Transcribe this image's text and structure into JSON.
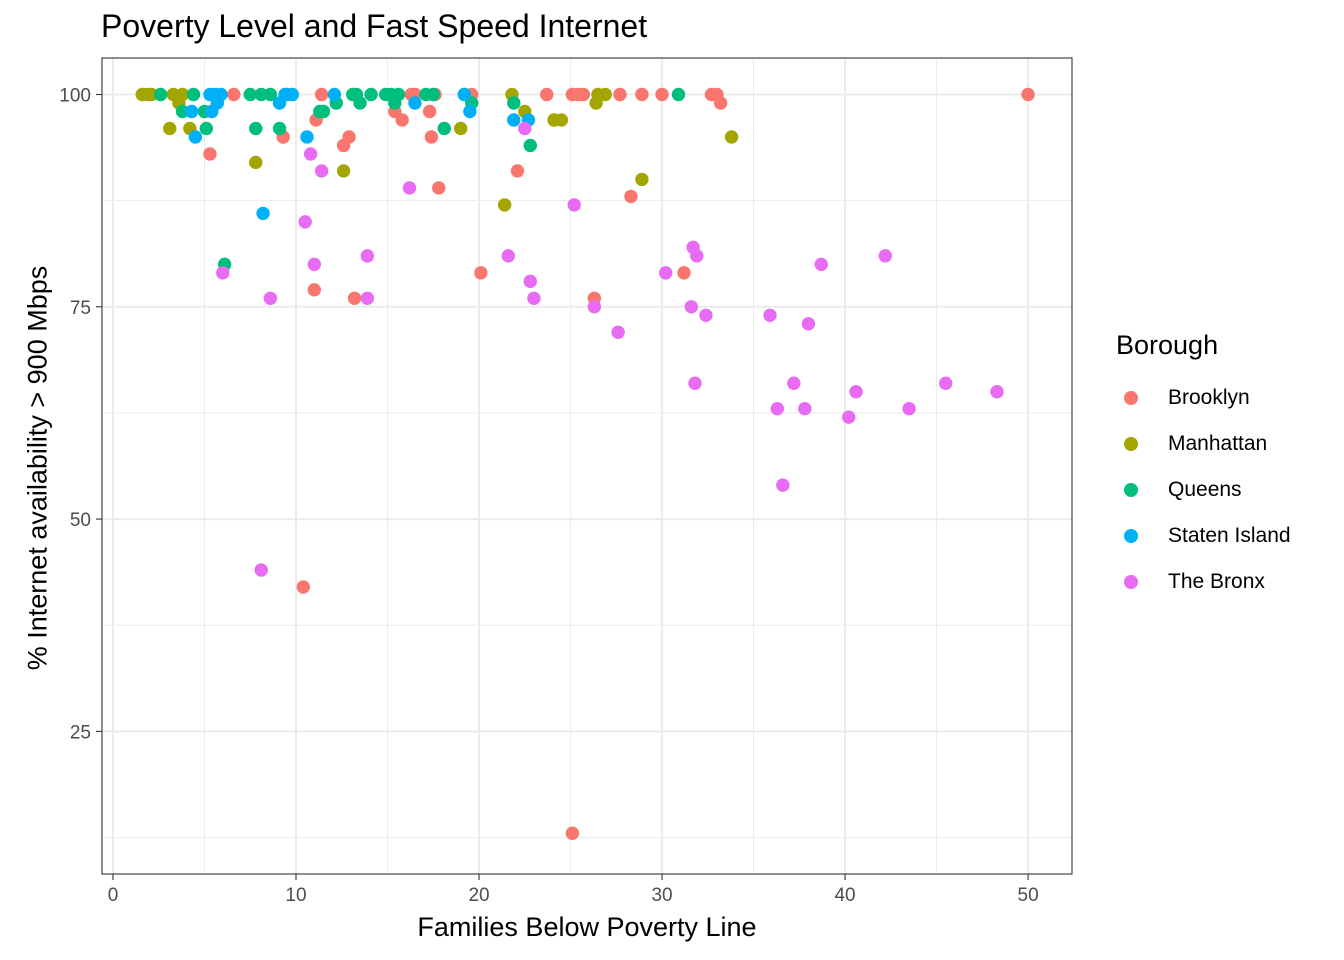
{
  "chart_data": {
    "type": "scatter",
    "title": "Poverty Level and Fast Speed Internet",
    "xlabel": "Families Below Poverty Line",
    "ylabel": "% Internet availability > 900 Mbps",
    "xlim": [
      -0.6,
      52.4
    ],
    "ylim": [
      8.2,
      104.3
    ],
    "x_ticks": [
      0,
      10,
      20,
      30,
      40,
      50
    ],
    "y_ticks": [
      25,
      50,
      75,
      100
    ],
    "grid": true,
    "legend_title": "Borough",
    "legend_position": "right",
    "series": [
      {
        "name": "Brooklyn",
        "color": "#F8766D",
        "points": [
          [
            5.3,
            93
          ],
          [
            6.6,
            100
          ],
          [
            9.3,
            95
          ],
          [
            11,
            77
          ],
          [
            11.1,
            97
          ],
          [
            11.4,
            100
          ],
          [
            12.6,
            94
          ],
          [
            12.9,
            95
          ],
          [
            13.2,
            76
          ],
          [
            15.4,
            98
          ],
          [
            15.8,
            97
          ],
          [
            16.3,
            100
          ],
          [
            16.5,
            100
          ],
          [
            17.3,
            98
          ],
          [
            17.4,
            95
          ],
          [
            17.6,
            100
          ],
          [
            17.8,
            89
          ],
          [
            19.6,
            100
          ],
          [
            20.1,
            79
          ],
          [
            22.1,
            91
          ],
          [
            23.7,
            100
          ],
          [
            25.1,
            100
          ],
          [
            25.4,
            100
          ],
          [
            25.7,
            100
          ],
          [
            26.3,
            76
          ],
          [
            27.7,
            100
          ],
          [
            28.3,
            88
          ],
          [
            28.9,
            100
          ],
          [
            30,
            100
          ],
          [
            31.2,
            79
          ],
          [
            32.7,
            100
          ],
          [
            33,
            100
          ],
          [
            33.2,
            99
          ],
          [
            25.1,
            13
          ],
          [
            10.4,
            42
          ],
          [
            50,
            100
          ]
        ]
      },
      {
        "name": "Manhattan",
        "color": "#A3A500",
        "points": [
          [
            1.6,
            100
          ],
          [
            1.9,
            100
          ],
          [
            2.1,
            100
          ],
          [
            3.1,
            96
          ],
          [
            3.3,
            100
          ],
          [
            3.6,
            99
          ],
          [
            3.8,
            100
          ],
          [
            4.2,
            96
          ],
          [
            7.8,
            92
          ],
          [
            12.6,
            91
          ],
          [
            19,
            96
          ],
          [
            21.4,
            87
          ],
          [
            21.8,
            100
          ],
          [
            22.5,
            98
          ],
          [
            24.1,
            97
          ],
          [
            24.5,
            97
          ],
          [
            26.4,
            99
          ],
          [
            26.5,
            100
          ],
          [
            26.9,
            100
          ],
          [
            28.9,
            90
          ],
          [
            33.8,
            95
          ]
        ]
      },
      {
        "name": "Queens",
        "color": "#00BF7D",
        "points": [
          [
            2.6,
            100
          ],
          [
            3.8,
            98
          ],
          [
            4.4,
            100
          ],
          [
            5,
            98
          ],
          [
            5.1,
            96
          ],
          [
            6.1,
            80
          ],
          [
            7.5,
            100
          ],
          [
            7.8,
            96
          ],
          [
            8.1,
            100
          ],
          [
            8.6,
            100
          ],
          [
            9.1,
            96
          ],
          [
            9.5,
            100
          ],
          [
            11.3,
            98
          ],
          [
            11.5,
            98
          ],
          [
            12.2,
            99
          ],
          [
            13.1,
            100
          ],
          [
            13.3,
            100
          ],
          [
            13.5,
            99
          ],
          [
            14.1,
            100
          ],
          [
            14.9,
            100
          ],
          [
            15.2,
            100
          ],
          [
            15.4,
            99
          ],
          [
            15.6,
            100
          ],
          [
            17.1,
            100
          ],
          [
            17.5,
            100
          ],
          [
            18.1,
            96
          ],
          [
            19.2,
            100
          ],
          [
            19.6,
            99
          ],
          [
            21.9,
            99
          ],
          [
            22.8,
            94
          ],
          [
            30.9,
            100
          ]
        ]
      },
      {
        "name": "Staten Island",
        "color": "#00B0F6",
        "points": [
          [
            4.3,
            98
          ],
          [
            4.5,
            95
          ],
          [
            5.3,
            100
          ],
          [
            5.4,
            98
          ],
          [
            5.6,
            100
          ],
          [
            5.7,
            99
          ],
          [
            5.9,
            100
          ],
          [
            8.2,
            86
          ],
          [
            9.1,
            99
          ],
          [
            9.4,
            100
          ],
          [
            9.8,
            100
          ],
          [
            10.6,
            95
          ],
          [
            12.1,
            100
          ],
          [
            16.5,
            99
          ],
          [
            19.2,
            100
          ],
          [
            19.5,
            98
          ],
          [
            21.9,
            97
          ],
          [
            22.7,
            97
          ]
        ]
      },
      {
        "name": "The Bronx",
        "color": "#E76BF3",
        "points": [
          [
            6,
            79
          ],
          [
            8.1,
            44
          ],
          [
            8.6,
            76
          ],
          [
            10.5,
            85
          ],
          [
            10.8,
            93
          ],
          [
            11,
            80
          ],
          [
            11.4,
            91
          ],
          [
            13.9,
            81
          ],
          [
            13.9,
            76
          ],
          [
            16.2,
            89
          ],
          [
            21.6,
            81
          ],
          [
            22.5,
            96
          ],
          [
            22.8,
            78
          ],
          [
            23,
            76
          ],
          [
            25.2,
            87
          ],
          [
            26.3,
            75
          ],
          [
            27.6,
            72
          ],
          [
            30.2,
            79
          ],
          [
            31.6,
            75
          ],
          [
            31.7,
            82
          ],
          [
            31.8,
            66
          ],
          [
            31.9,
            81
          ],
          [
            32.4,
            74
          ],
          [
            35.9,
            74
          ],
          [
            36.3,
            63
          ],
          [
            36.6,
            54
          ],
          [
            37.2,
            66
          ],
          [
            37.8,
            63
          ],
          [
            38,
            73
          ],
          [
            38.7,
            80
          ],
          [
            40.2,
            62
          ],
          [
            40.6,
            65
          ],
          [
            42.2,
            81
          ],
          [
            43.5,
            63
          ],
          [
            45.5,
            66
          ],
          [
            48.3,
            65
          ]
        ]
      }
    ]
  }
}
